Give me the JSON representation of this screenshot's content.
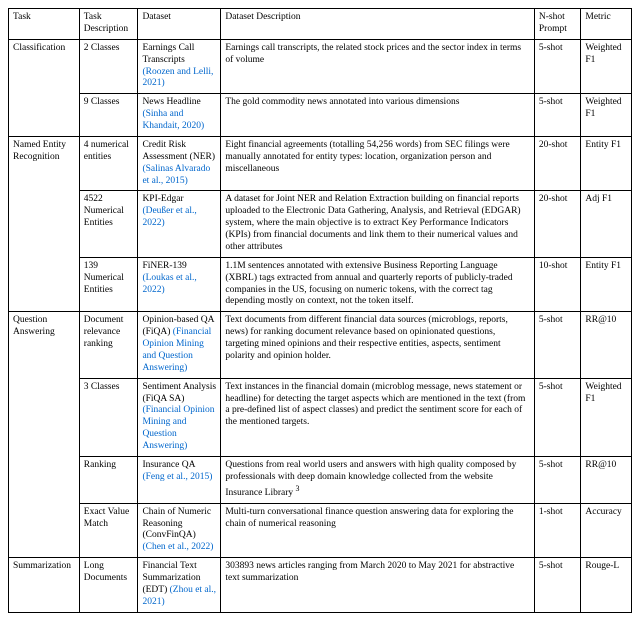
{
  "headers": {
    "task": "Task",
    "taskdesc": "Task Description",
    "dataset": "Dataset",
    "datasetdesc": "Dataset Description",
    "nshot": "N-shot Prompt",
    "metric": "Metric"
  },
  "tasks": {
    "classification": "Classification",
    "ner": "Named Entity Recognition",
    "qa": "Question Answering",
    "summ": "Summarization"
  },
  "rows": {
    "r1": {
      "desc": "2 Classes",
      "ds_text": "Earnings Call Transcripts ",
      "ds_cite": "(Roozen and Lelli, 2021)",
      "dd": "Earnings call transcripts, the related stock prices and the sector index in terms of volume",
      "nshot": "5-shot",
      "metric": "Weighted F1"
    },
    "r2": {
      "desc": "9 Classes",
      "ds_text": "News Headline ",
      "ds_cite": "(Sinha and Khandait, 2020)",
      "dd": "The gold commodity news annotated into various dimensions",
      "nshot": "5-shot",
      "metric": "Weighted F1"
    },
    "r3": {
      "desc": "4 numerical entities",
      "ds_text": "Credit Risk Assessment (NER) ",
      "ds_cite": "(Salinas Alvarado et al., 2015)",
      "dd": "Eight financial agreements (totalling 54,256 words) from SEC filings were manually annotated for entity types:  location, organization person and miscellaneous",
      "nshot": "20-shot",
      "metric": "Entity F1"
    },
    "r4": {
      "desc": "4522 Numerical Entities",
      "ds_text": "KPI-Edgar ",
      "ds_cite": "(Deußer et al., 2022)",
      "dd": "A dataset for Joint NER and Relation Extraction building on financial reports uploaded to the Electronic Data Gathering, Analysis, and Retrieval (EDGAR) system, where the main objective is to extract Key Performance Indicators (KPIs) from financial documents and link them to their numerical values and other attributes",
      "nshot": "20-shot",
      "metric": "Adj F1"
    },
    "r5": {
      "desc": "139 Numerical Entities",
      "ds_text": "FiNER-139 ",
      "ds_cite": "(Loukas et al., 2022)",
      "dd": "1.1M sentences annotated with extensive Business Reporting Language (XBRL) tags extracted from annual and quarterly reports of publicly-traded companies in the US, focusing on numeric tokens, with the correct tag depending mostly on context, not the token itself.",
      "nshot": "10-shot",
      "metric": "Entity F1"
    },
    "r6": {
      "desc": "Document relevance ranking",
      "ds_text": "Opinion-based QA (FiQA) ",
      "ds_cite": "(Financial Opinion Mining and Question Answering)",
      "dd": "Text documents from different financial data sources (microblogs, reports, news) for ranking document relevance based on opinionated questions, targeting mined opinions and their respective entities, aspects, sentiment polarity and opinion holder.",
      "nshot": "5-shot",
      "metric": "RR@10"
    },
    "r7": {
      "desc": "3 Classes",
      "ds_text": "Sentiment Analysis (FiQA SA) ",
      "ds_cite": "(Financial Opinion Mining and Question Answering)",
      "dd": "Text instances in the financial domain (microblog message, news statement or headline) for detecting the target aspects which are mentioned in the text (from a pre-defined list of aspect classes) and predict the sentiment score for each of the mentioned targets.",
      "nshot": "5-shot",
      "metric": "Weighted F1"
    },
    "r8": {
      "desc": "Ranking",
      "ds_text": "Insurance QA ",
      "ds_cite": "(Feng et al., 2015)",
      "dd_a": "Questions from real world users and answers with high quality composed by professionals with deep domain knowledge collected from the website Insurance Library ",
      "dd_b": "3",
      "nshot": "5-shot",
      "metric": "RR@10"
    },
    "r9": {
      "desc": "Exact Value Match",
      "ds_text": "Chain of Numeric Reasoning (ConvFinQA) ",
      "ds_cite": "(Chen et al., 2022)",
      "dd": "Multi-turn conversational finance question answering data for exploring the chain of numerical reasoning",
      "nshot": "1-shot",
      "metric": "Accuracy"
    },
    "r10": {
      "desc": "Long Documents",
      "ds_text": "Financial Text Summarization (EDT) ",
      "ds_cite": "(Zhou et al., 2021)",
      "dd": "303893 news articles ranging from March 2020 to May 2021 for abstractive text summarization",
      "nshot": "5-shot",
      "metric": "Rouge-L"
    }
  }
}
